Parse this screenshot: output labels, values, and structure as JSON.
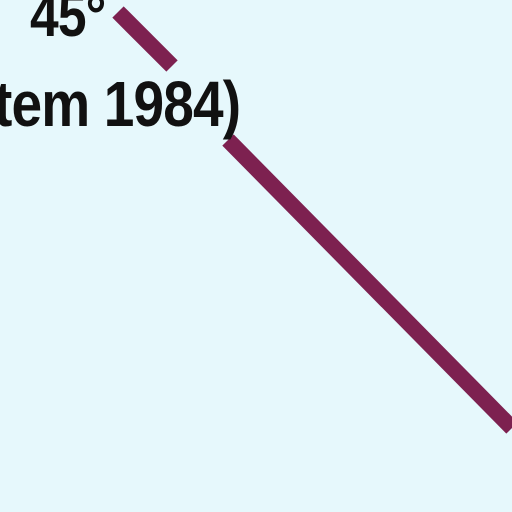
{
  "map": {
    "background_color": "#e6f8fc",
    "line_color": "#7d2150",
    "labels": {
      "meridian": "45°",
      "datum": "tem 1984)"
    }
  }
}
